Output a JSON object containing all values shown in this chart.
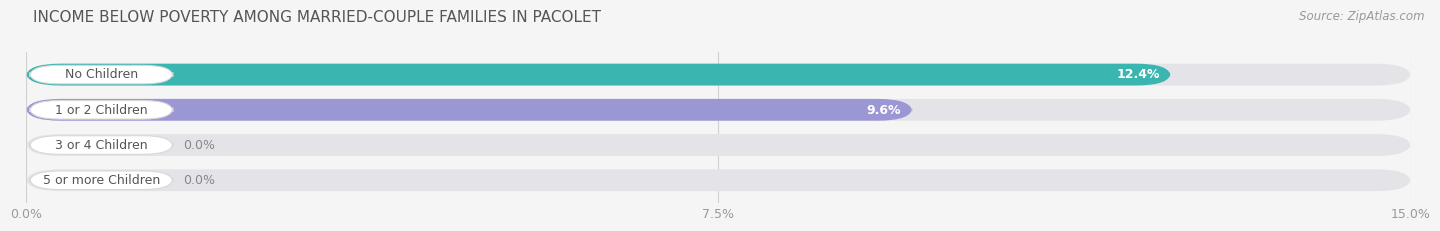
{
  "title": "INCOME BELOW POVERTY AMONG MARRIED-COUPLE FAMILIES IN PACOLET",
  "source": "Source: ZipAtlas.com",
  "categories": [
    "No Children",
    "1 or 2 Children",
    "3 or 4 Children",
    "5 or more Children"
  ],
  "values": [
    12.4,
    9.6,
    0.0,
    0.0
  ],
  "bar_colors": [
    "#3ab5b0",
    "#9b97d4",
    "#f4a7b9",
    "#f8c89a"
  ],
  "bar_bg_color": "#e4e4e8",
  "xlim": [
    0,
    15.0
  ],
  "xticks": [
    0.0,
    7.5,
    15.0
  ],
  "xtick_labels": [
    "0.0%",
    "7.5%",
    "15.0%"
  ],
  "title_fontsize": 11,
  "source_fontsize": 8.5,
  "tick_fontsize": 9,
  "bar_label_fontsize": 9,
  "category_fontsize": 9,
  "bar_height": 0.62,
  "bar_gap": 1.0,
  "background_color": "#f5f5f5",
  "fig_width": 14.06,
  "fig_height": 2.33
}
